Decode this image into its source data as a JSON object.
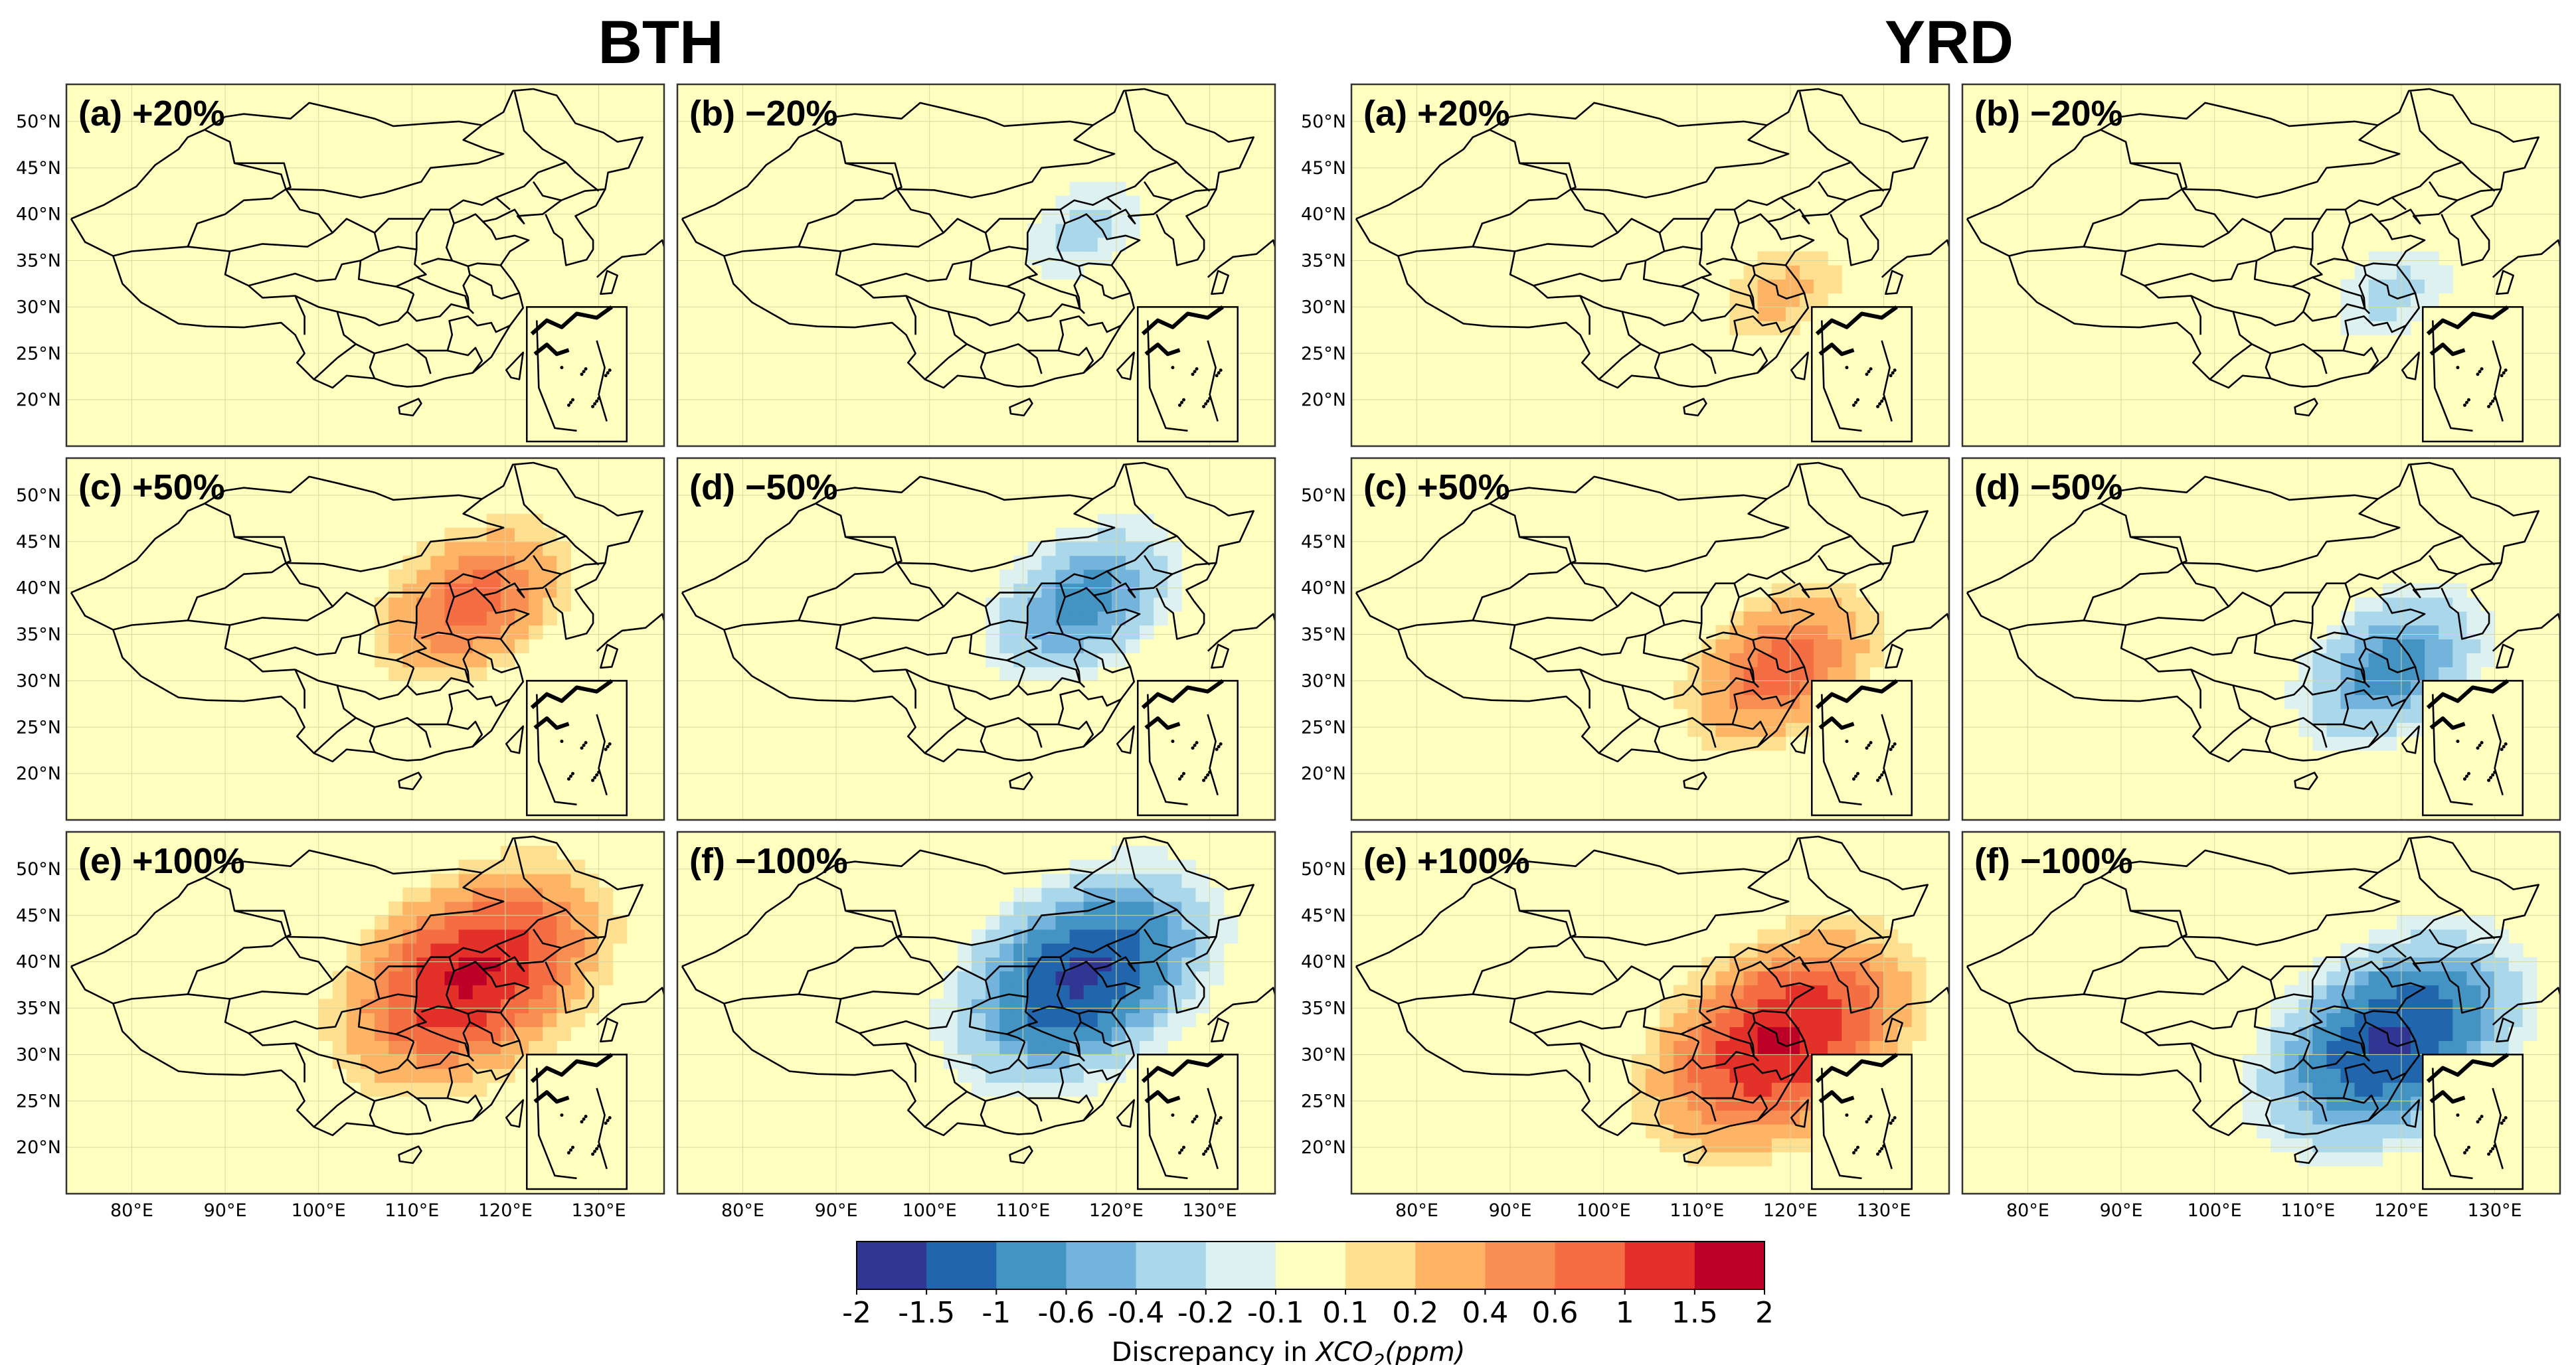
{
  "chart_data": {
    "type": "heatmap",
    "description_units": "ppm",
    "groups": [
      {
        "title": "BTH",
        "center_lon": 116.5,
        "center_lat": 38.5,
        "panels": [
          {
            "label": "(a) +20%",
            "sign": 1,
            "peak": 0.05
          },
          {
            "label": "(b) −20%",
            "sign": -1,
            "peak": 0.25
          },
          {
            "label": "(c) +50%",
            "sign": 1,
            "peak": 0.75
          },
          {
            "label": "(d) −50%",
            "sign": -1,
            "peak": 0.75
          },
          {
            "label": "(e) +100%",
            "sign": 1,
            "peak": 1.6
          },
          {
            "label": "(f) −100%",
            "sign": -1,
            "peak": 1.6
          }
        ]
      },
      {
        "title": "YRD",
        "center_lon": 119.0,
        "center_lat": 31.5,
        "panels": [
          {
            "label": "(a) +20%",
            "sign": 1,
            "peak": 0.25
          },
          {
            "label": "(b) −20%",
            "sign": -1,
            "peak": 0.25
          },
          {
            "label": "(c) +50%",
            "sign": 1,
            "peak": 0.75
          },
          {
            "label": "(d) −50%",
            "sign": -1,
            "peak": 0.75
          },
          {
            "label": "(e) +100%",
            "sign": 1,
            "peak": 1.6
          },
          {
            "label": "(f) −100%",
            "sign": -1,
            "peak": 1.6
          }
        ]
      }
    ],
    "lon_range": [
      73,
      137
    ],
    "lat_range": [
      15,
      54
    ],
    "xticks": [
      "80°E",
      "90°E",
      "100°E",
      "110°E",
      "120°E",
      "130°E"
    ],
    "xtick_values": [
      80,
      90,
      100,
      110,
      120,
      130
    ],
    "yticks": [
      "50°N",
      "45°N",
      "40°N",
      "35°N",
      "30°N",
      "25°N",
      "20°N"
    ],
    "ytick_values": [
      50,
      45,
      40,
      35,
      30,
      25,
      20
    ],
    "colorbar": {
      "bounds": [
        -2,
        -1.5,
        -1,
        -0.6,
        -0.4,
        -0.2,
        -0.1,
        0.1,
        0.2,
        0.4,
        0.6,
        1,
        1.5,
        2
      ],
      "tick_labels": [
        "-2",
        "-1.5",
        "-1",
        "-0.6",
        "-0.4",
        "-0.2",
        "-0.1",
        "0.1",
        "0.2",
        "0.4",
        "0.6",
        "1",
        "1.5",
        "2"
      ],
      "colors": [
        "#313695",
        "#2166ac",
        "#4393c3",
        "#74b4dc",
        "#aad8ea",
        "#ddf2f0",
        "#ffffbf",
        "#fee090",
        "#fdb565",
        "#f98e52",
        "#f46d43",
        "#e3312a",
        "#bd0026"
      ],
      "label_prefix": "Discrepancy in ",
      "label_var": "XCO",
      "label_sub": "2",
      "label_suffix": "(ppm)"
    }
  }
}
